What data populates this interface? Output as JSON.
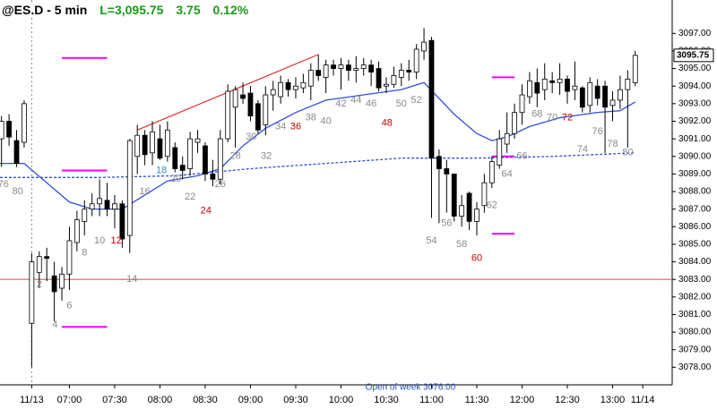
{
  "chart_data": {
    "type": "candlestick",
    "title": "@ES.D - 5 min",
    "last_label": "L=3,095.75",
    "change": "3.75",
    "change_pct": "0.12%",
    "footnote": "Open of week 3076.00",
    "price_tag": {
      "value": 3095.75,
      "label": "3095.75"
    },
    "up_color": "#ffffff",
    "down_color": "#000000",
    "x": [
      -3,
      -2,
      -1,
      0,
      1,
      2,
      3,
      4,
      5,
      6,
      7,
      8,
      9,
      10,
      11,
      12,
      13,
      14,
      15,
      16,
      17,
      18,
      19,
      20,
      21,
      22,
      23,
      24,
      25,
      26,
      27,
      28,
      29,
      30,
      31,
      32,
      33,
      34,
      35,
      36,
      37,
      38,
      39,
      40,
      41,
      42,
      43,
      44,
      45,
      46,
      47,
      48,
      49,
      50,
      51,
      52,
      53,
      54,
      55,
      56,
      57,
      58,
      59,
      60,
      61,
      62,
      63,
      64,
      65,
      66,
      67,
      68,
      69,
      70,
      71,
      72,
      73,
      74,
      75,
      76,
      77,
      78,
      79,
      80,
      81
    ],
    "open": [
      3091.0,
      3092.0,
      3090.9,
      3090.8,
      3080.5,
      3083.4,
      3084.3,
      3083.2,
      3082.5,
      3083.3,
      3085.1,
      3086.3,
      3087.0,
      3087.3,
      3087.5,
      3087.0,
      3087.3,
      3085.5,
      3090.0,
      3091.2,
      3090.2,
      3091.0,
      3090.0,
      3090.5,
      3089.5,
      3089.3,
      3090.8,
      3090.6,
      3089.0,
      3088.7,
      3091.0,
      3092.8,
      3093.5,
      3093.6,
      3093.0,
      3091.8,
      3093.5,
      3093.4,
      3094.2,
      3093.8,
      3093.9,
      3094.0,
      3094.9,
      3094.5,
      3095.2,
      3095.0,
      3095.2,
      3094.9,
      3095.0,
      3095.2,
      3095.0,
      3094.0,
      3094.1,
      3094.5,
      3094.9,
      3094.8,
      3096.0,
      3096.6,
      3090.0,
      3089.3,
      3089.0,
      3086.6,
      3087.9,
      3086.3,
      3087.2,
      3088.5,
      3089.5,
      3090.7,
      3091.3,
      3092.5,
      3093.4,
      3094.2,
      3093.8,
      3094.3,
      3094.2,
      3094.4,
      3093.8,
      3093.9,
      3092.9,
      3094.0,
      3094.0,
      3092.9,
      3093.2,
      3093.8,
      3094.2
    ],
    "high": [
      3092.3,
      3092.4,
      3091.5,
      3093.2,
      3084.5,
      3084.6,
      3084.8,
      3084.0,
      3083.7,
      3086.0,
      3086.9,
      3087.5,
      3087.9,
      3088.7,
      3088.5,
      3087.8,
      3087.5,
      3091.0,
      3091.8,
      3091.5,
      3092.0,
      3091.8,
      3092.0,
      3090.8,
      3090.0,
      3091.4,
      3091.5,
      3090.8,
      3089.8,
      3091.5,
      3094.1,
      3094.0,
      3094.2,
      3094.0,
      3093.2,
      3094.0,
      3094.3,
      3094.6,
      3094.4,
      3094.5,
      3094.7,
      3095.3,
      3095.8,
      3095.5,
      3095.5,
      3095.6,
      3095.5,
      3095.7,
      3095.6,
      3095.5,
      3095.4,
      3094.5,
      3095.1,
      3095.3,
      3095.5,
      3096.4,
      3097.3,
      3096.8,
      3090.4,
      3089.8,
      3089.0,
      3087.8,
      3088.0,
      3087.4,
      3089.0,
      3090.0,
      3091.5,
      3092.5,
      3093.0,
      3094.1,
      3094.8,
      3095.0,
      3095.3,
      3094.8,
      3095.3,
      3094.6,
      3095.4,
      3094.0,
      3094.5,
      3094.4,
      3094.3,
      3093.7,
      3094.6,
      3094.9,
      3096.0
    ],
    "low": [
      3089.4,
      3090.6,
      3089.4,
      3090.5,
      3078.0,
      3082.5,
      3082.9,
      3080.6,
      3081.8,
      3082.4,
      3084.6,
      3085.5,
      3086.6,
      3086.6,
      3086.6,
      3085.9,
      3084.8,
      3084.5,
      3089.0,
      3089.5,
      3089.5,
      3089.8,
      3089.7,
      3089.1,
      3088.7,
      3088.9,
      3090.2,
      3088.6,
      3088.3,
      3088.4,
      3090.8,
      3090.5,
      3093.0,
      3092.0,
      3091.3,
      3091.2,
      3092.6,
      3093.0,
      3093.4,
      3093.3,
      3093.6,
      3093.2,
      3094.3,
      3093.6,
      3094.6,
      3093.8,
      3094.3,
      3094.2,
      3094.6,
      3094.0,
      3093.7,
      3093.6,
      3093.9,
      3094.0,
      3094.3,
      3094.4,
      3095.5,
      3086.5,
      3086.2,
      3086.8,
      3086.3,
      3086.0,
      3085.8,
      3085.5,
      3086.8,
      3088.2,
      3089.3,
      3090.2,
      3091.0,
      3091.8,
      3093.0,
      3092.8,
      3093.2,
      3093.6,
      3093.5,
      3093.0,
      3093.2,
      3092.5,
      3092.5,
      3092.9,
      3090.2,
      3092.0,
      3092.7,
      3090.5,
      3094.0
    ],
    "close": [
      3092.0,
      3091.1,
      3089.6,
      3093.0,
      3084.0,
      3084.3,
      3084.2,
      3082.3,
      3083.3,
      3085.2,
      3086.4,
      3087.0,
      3087.3,
      3087.6,
      3087.0,
      3087.3,
      3085.3,
      3090.9,
      3091.2,
      3090.1,
      3091.4,
      3089.9,
      3091.5,
      3089.3,
      3089.2,
      3091.0,
      3091.0,
      3089.0,
      3088.7,
      3091.0,
      3093.7,
      3093.8,
      3093.3,
      3092.3,
      3091.5,
      3093.5,
      3093.8,
      3094.2,
      3093.8,
      3094.0,
      3094.2,
      3094.9,
      3094.6,
      3095.2,
      3095.0,
      3095.2,
      3094.9,
      3095.0,
      3095.2,
      3094.8,
      3093.9,
      3094.1,
      3094.6,
      3094.9,
      3094.8,
      3096.1,
      3096.5,
      3089.9,
      3089.3,
      3089.0,
      3086.6,
      3087.2,
      3086.3,
      3087.0,
      3088.5,
      3089.7,
      3091.0,
      3091.3,
      3092.5,
      3093.5,
      3094.3,
      3093.6,
      3094.4,
      3094.2,
      3094.4,
      3093.7,
      3094.0,
      3092.8,
      3094.2,
      3093.3,
      3092.8,
      3093.2,
      3093.8,
      3094.4,
      3095.75
    ],
    "ema": {
      "color": "#2f4fe0",
      "x": [
        -3.2,
        0,
        3,
        6,
        9,
        13,
        16,
        19,
        23,
        26,
        29,
        32,
        36,
        40,
        45,
        50,
        53,
        55,
        57,
        60,
        62,
        64,
        67,
        71,
        76,
        79,
        81
      ],
      "values": [
        3089.6,
        3089.6,
        3088.5,
        3087.4,
        3087.0,
        3087.0,
        3087.8,
        3088.6,
        3088.9,
        3089.3,
        3090.6,
        3091.6,
        3092.5,
        3093.2,
        3093.5,
        3093.8,
        3094.2,
        3093.3,
        3092.4,
        3091.3,
        3090.9,
        3091.1,
        3091.7,
        3092.2,
        3092.5,
        3092.6,
        3093.1
      ]
    },
    "dashed": {
      "color": "#3050d0",
      "x": [
        -3.2,
        1,
        10,
        20,
        30,
        40,
        50,
        55,
        60,
        70,
        81
      ],
      "values": [
        3088.8,
        3088.8,
        3088.8,
        3088.9,
        3089.3,
        3089.6,
        3089.9,
        3089.9,
        3089.9,
        3090.0,
        3090.2
      ]
    },
    "lines": [
      {
        "color": "#e05a5a",
        "x": [
          -3.2,
          85.9
        ],
        "y": [
          3083,
          3083
        ]
      },
      {
        "color": "#e03030",
        "x": [
          15,
          39
        ],
        "y": [
          3091.5,
          3095.8
        ]
      },
      {
        "color": "#ff00ff",
        "x": [
          5,
          11
        ],
        "y": [
          3095.6,
          3095.6
        ]
      },
      {
        "color": "#ff00ff",
        "x": [
          5,
          11
        ],
        "y": [
          3089.2,
          3089.2
        ]
      },
      {
        "color": "#ff00ff",
        "x": [
          5,
          11
        ],
        "y": [
          3080.3,
          3080.3
        ]
      },
      {
        "color": "#ff00ff",
        "x": [
          62,
          65
        ],
        "y": [
          3094.5,
          3094.5
        ]
      },
      {
        "color": "#ff00ff",
        "x": [
          62,
          65
        ],
        "y": [
          3090,
          3090
        ]
      },
      {
        "color": "#ff00ff",
        "x": [
          62,
          65
        ],
        "y": [
          3085.6,
          3085.6
        ]
      }
    ],
    "annotations": [
      {
        "text": "76",
        "x": -2.76,
        "y": 3088.4,
        "color": "#8a8a8a"
      },
      {
        "text": "80",
        "x": -0.85,
        "y": 3088.0,
        "color": "#8a8a8a"
      },
      {
        "text": "2",
        "x": 2,
        "y": 3082.7,
        "color": "#8a8a8a"
      },
      {
        "text": "4",
        "x": 4.1,
        "y": 3080.4,
        "color": "#8a8a8a"
      },
      {
        "text": "6",
        "x": 6,
        "y": 3081.5,
        "color": "#8a8a8a"
      },
      {
        "text": "8",
        "x": 8,
        "y": 3084.5,
        "color": "#8a8a8a"
      },
      {
        "text": "10",
        "x": 10,
        "y": 3085.2,
        "color": "#8a8a8a"
      },
      {
        "text": "12",
        "x": 12.2,
        "y": 3085.2,
        "color": "#cc0000"
      },
      {
        "text": "14",
        "x": 14.3,
        "y": 3083.0,
        "color": "#8a8a8a"
      },
      {
        "text": "16",
        "x": 16,
        "y": 3088.0,
        "color": "#8a8a8a"
      },
      {
        "text": "18",
        "x": 18.2,
        "y": 3089.2,
        "color": "#2a8fd8"
      },
      {
        "text": "20",
        "x": 20.1,
        "y": 3088.7,
        "color": "#8a8a8a"
      },
      {
        "text": "22",
        "x": 22,
        "y": 3087.7,
        "color": "#8a8a8a"
      },
      {
        "text": "24",
        "x": 24.1,
        "y": 3086.9,
        "color": "#cc0000"
      },
      {
        "text": "26",
        "x": 26,
        "y": 3088.4,
        "color": "#8a8a8a"
      },
      {
        "text": "28",
        "x": 28,
        "y": 3090.0,
        "color": "#8a8a8a"
      },
      {
        "text": "30",
        "x": 30.1,
        "y": 3091.1,
        "color": "#8a8a8a"
      },
      {
        "text": "32",
        "x": 32.1,
        "y": 3090.0,
        "color": "#8a8a8a"
      },
      {
        "text": "34",
        "x": 34,
        "y": 3091.7,
        "color": "#8a8a8a"
      },
      {
        "text": "36",
        "x": 36,
        "y": 3091.7,
        "color": "#cc0000"
      },
      {
        "text": "38",
        "x": 38,
        "y": 3092.2,
        "color": "#8a8a8a"
      },
      {
        "text": "40",
        "x": 40,
        "y": 3092.0,
        "color": "#8a8a8a"
      },
      {
        "text": "42",
        "x": 42,
        "y": 3093.0,
        "color": "#8a8a8a"
      },
      {
        "text": "44",
        "x": 44,
        "y": 3093.2,
        "color": "#8a8a8a"
      },
      {
        "text": "46",
        "x": 46,
        "y": 3093.0,
        "color": "#8a8a8a"
      },
      {
        "text": "48",
        "x": 48.1,
        "y": 3091.9,
        "color": "#cc0000"
      },
      {
        "text": "50",
        "x": 50,
        "y": 3093.0,
        "color": "#8a8a8a"
      },
      {
        "text": "52",
        "x": 52,
        "y": 3093.2,
        "color": "#8a8a8a"
      },
      {
        "text": "54",
        "x": 54,
        "y": 3085.2,
        "color": "#8a8a8a"
      },
      {
        "text": "56",
        "x": 56,
        "y": 3086.2,
        "color": "#8a8a8a"
      },
      {
        "text": "58",
        "x": 58,
        "y": 3085.0,
        "color": "#8a8a8a"
      },
      {
        "text": "60",
        "x": 60,
        "y": 3084.2,
        "color": "#cc0000"
      },
      {
        "text": "62",
        "x": 62,
        "y": 3087.2,
        "color": "#8a8a8a"
      },
      {
        "text": "64",
        "x": 64,
        "y": 3089.0,
        "color": "#8a8a8a"
      },
      {
        "text": "66",
        "x": 66,
        "y": 3090.0,
        "color": "#8a8a8a"
      },
      {
        "text": "68",
        "x": 68,
        "y": 3092.4,
        "color": "#8a8a8a"
      },
      {
        "text": "70",
        "x": 70,
        "y": 3092.2,
        "color": "#8a8a8a"
      },
      {
        "text": "72",
        "x": 72,
        "y": 3092.2,
        "color": "#cc0000"
      },
      {
        "text": "74",
        "x": 74,
        "y": 3090.4,
        "color": "#8a8a8a"
      },
      {
        "text": "76",
        "x": 76,
        "y": 3091.4,
        "color": "#8a8a8a"
      },
      {
        "text": "78",
        "x": 78,
        "y": 3090.7,
        "color": "#8a8a8a"
      },
      {
        "text": "80",
        "x": 80,
        "y": 3090.2,
        "color": "#8a8a8a"
      }
    ],
    "xlim": [
      -3.2,
      85.9
    ],
    "xticks": [
      {
        "value": 1,
        "label": "11/13"
      },
      {
        "value": 6,
        "label": "07:00"
      },
      {
        "value": 12,
        "label": "07:30"
      },
      {
        "value": 18,
        "label": "08:00"
      },
      {
        "value": 24,
        "label": "08:30"
      },
      {
        "value": 30,
        "label": "09:00"
      },
      {
        "value": 36,
        "label": "09:30"
      },
      {
        "value": 42,
        "label": "10:00"
      },
      {
        "value": 48,
        "label": "10:30"
      },
      {
        "value": 54,
        "label": "11:00"
      },
      {
        "value": 60,
        "label": "11:30"
      },
      {
        "value": 66,
        "label": "12:00"
      },
      {
        "value": 72,
        "label": "12:30"
      },
      {
        "value": 78,
        "label": "13:00"
      },
      {
        "value": 82,
        "label": "11/14"
      }
    ],
    "ylim": [
      3077,
      3098.9
    ],
    "yticks": [
      {
        "value": 3078,
        "label": "3078.00"
      },
      {
        "value": 3079,
        "label": "3079.00"
      },
      {
        "value": 3080,
        "label": "3080.00"
      },
      {
        "value": 3081,
        "label": "3081.00"
      },
      {
        "value": 3082,
        "label": "3082.00"
      },
      {
        "value": 3083,
        "label": "3083.00"
      },
      {
        "value": 3084,
        "label": "3084.00"
      },
      {
        "value": 3085,
        "label": "3085.00"
      },
      {
        "value": 3086,
        "label": "3086.00"
      },
      {
        "value": 3087,
        "label": "3087.00"
      },
      {
        "value": 3088,
        "label": "3088.00"
      },
      {
        "value": 3089,
        "label": "3089.00"
      },
      {
        "value": 3090,
        "label": "3090.00"
      },
      {
        "value": 3091,
        "label": "3091.00"
      },
      {
        "value": 3092,
        "label": "3092.00"
      },
      {
        "value": 3093,
        "label": "3093.00"
      },
      {
        "value": 3094,
        "label": "3094.00"
      },
      {
        "value": 3095,
        "label": "3095.00"
      },
      {
        "value": 3096,
        "label": "3096.00"
      },
      {
        "value": 3097,
        "label": "3097.00"
      }
    ]
  }
}
